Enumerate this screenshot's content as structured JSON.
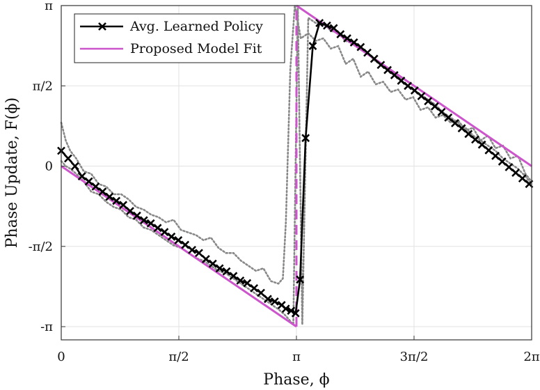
{
  "chart_data": {
    "type": "line",
    "title": "",
    "xlabel": "Phase, ϕ",
    "ylabel": "Phase Update, F(ϕ)",
    "xlim": [
      0,
      6.2832
    ],
    "ylim": [
      -3.4,
      3.1416
    ],
    "grid": true,
    "legend_position": "top-left",
    "x_ticks": [
      {
        "value": 0,
        "label": "0"
      },
      {
        "value": 1.5708,
        "label": "π/2"
      },
      {
        "value": 3.1416,
        "label": "π"
      },
      {
        "value": 4.7124,
        "label": "3π/2"
      },
      {
        "value": 6.2832,
        "label": "2π"
      }
    ],
    "y_ticks": [
      {
        "value": -3.1416,
        "label": "-π"
      },
      {
        "value": -1.5708,
        "label": "-π/2"
      },
      {
        "value": 0,
        "label": "0"
      },
      {
        "value": 1.5708,
        "label": "π/2"
      },
      {
        "value": 3.1416,
        "label": "π"
      }
    ],
    "series": [
      {
        "name": "Avg. Learned Policy",
        "color": "#000000",
        "marker": "x",
        "x": [
          0.0,
          0.092,
          0.184,
          0.276,
          0.368,
          0.46,
          0.552,
          0.644,
          0.736,
          0.828,
          0.92,
          1.012,
          1.104,
          1.196,
          1.288,
          1.38,
          1.472,
          1.564,
          1.656,
          1.748,
          1.84,
          1.932,
          2.024,
          2.116,
          2.208,
          2.3,
          2.392,
          2.484,
          2.576,
          2.668,
          2.76,
          2.852,
          2.944,
          3.0,
          3.07,
          3.13,
          3.19,
          3.264,
          3.36,
          3.45,
          3.55,
          3.64,
          3.73,
          3.82,
          3.91,
          4.0,
          4.09,
          4.18,
          4.27,
          4.36,
          4.45,
          4.54,
          4.63,
          4.72,
          4.81,
          4.9,
          4.99,
          5.08,
          5.17,
          5.26,
          5.35,
          5.44,
          5.53,
          5.62,
          5.71,
          5.8,
          5.89,
          5.98,
          6.07,
          6.16,
          6.25
        ],
        "y": [
          0.3,
          0.15,
          0.0,
          -0.2,
          -0.3,
          -0.4,
          -0.5,
          -0.6,
          -0.68,
          -0.76,
          -0.88,
          -0.97,
          -1.06,
          -1.12,
          -1.21,
          -1.29,
          -1.38,
          -1.45,
          -1.54,
          -1.64,
          -1.7,
          -1.82,
          -1.91,
          -2.0,
          -2.06,
          -2.15,
          -2.24,
          -2.29,
          -2.39,
          -2.48,
          -2.6,
          -2.65,
          -2.72,
          -2.79,
          -2.83,
          -2.88,
          -2.22,
          0.55,
          2.35,
          2.8,
          2.75,
          2.7,
          2.58,
          2.5,
          2.42,
          2.33,
          2.22,
          2.1,
          1.98,
          1.88,
          1.78,
          1.67,
          1.57,
          1.48,
          1.37,
          1.27,
          1.17,
          1.06,
          0.95,
          0.84,
          0.74,
          0.63,
          0.52,
          0.42,
          0.31,
          0.2,
          0.09,
          -0.02,
          -0.13,
          -0.24,
          -0.35
        ]
      },
      {
        "name": "Proposed Model Fit",
        "color": "#cc55cc",
        "marker": "none",
        "x": [
          0.0,
          3.1416,
          3.1416,
          6.2832
        ],
        "y": [
          0.0,
          -3.1416,
          3.1416,
          0.0
        ]
      },
      {
        "name": "",
        "color": "#888888",
        "style": "dotted",
        "x": [
          0.0,
          0.06,
          0.12,
          0.2,
          0.3,
          0.4,
          0.5,
          0.6,
          0.7,
          0.8,
          0.9,
          1.0,
          1.1,
          1.2,
          1.3,
          1.4,
          1.5,
          1.6,
          1.7,
          1.8,
          1.9,
          2.0,
          2.1,
          2.2,
          2.3,
          2.4,
          2.5,
          2.6,
          2.7,
          2.8,
          2.9,
          2.96,
          3.0,
          3.06,
          3.12,
          3.2,
          3.3,
          3.4,
          3.5,
          3.6,
          3.7,
          3.8,
          3.9,
          4.0,
          4.1,
          4.2,
          4.3,
          4.4,
          4.5,
          4.6,
          4.7,
          4.8,
          4.9,
          5.0,
          5.1,
          5.2,
          5.3,
          5.4,
          5.5,
          5.6,
          5.7,
          5.8,
          5.9,
          6.0,
          6.1,
          6.2,
          6.28
        ],
        "y": [
          0.85,
          0.5,
          0.3,
          0.15,
          -0.1,
          -0.15,
          -0.35,
          -0.4,
          -0.55,
          -0.55,
          -0.65,
          -0.8,
          -0.85,
          -0.95,
          -1.0,
          -1.1,
          -1.05,
          -1.25,
          -1.3,
          -1.35,
          -1.45,
          -1.4,
          -1.6,
          -1.7,
          -1.7,
          -1.85,
          -1.95,
          -2.05,
          -2.0,
          -2.25,
          -2.3,
          -2.2,
          -1.1,
          1.9,
          3.15,
          2.5,
          2.6,
          2.45,
          2.5,
          2.3,
          2.35,
          2.0,
          2.1,
          1.75,
          1.85,
          1.6,
          1.65,
          1.45,
          1.5,
          1.3,
          1.35,
          1.1,
          1.15,
          0.95,
          1.0,
          0.85,
          0.9,
          0.7,
          0.75,
          0.5,
          0.6,
          0.35,
          0.4,
          0.15,
          0.2,
          -0.15,
          -0.3
        ]
      },
      {
        "name": "",
        "color": "#888888",
        "style": "dotted",
        "x": [
          0.0,
          0.06,
          0.12,
          0.2,
          0.3,
          0.4,
          0.5,
          0.6,
          0.7,
          0.8,
          0.9,
          1.0,
          1.1,
          1.2,
          1.3,
          1.4,
          1.5,
          1.6,
          1.7,
          1.8,
          1.9,
          2.0,
          2.1,
          2.2,
          2.3,
          2.4,
          2.5,
          2.6,
          2.7,
          2.8,
          2.9,
          2.98,
          3.04,
          3.1,
          3.16,
          3.22,
          3.3,
          3.4,
          3.5,
          3.6,
          3.7,
          3.8,
          3.9,
          4.0,
          4.1,
          4.2,
          4.3,
          4.4,
          4.5,
          4.6,
          4.7,
          4.8,
          4.9,
          5.0,
          5.1,
          5.2,
          5.3,
          5.4,
          5.5,
          5.6,
          5.7,
          5.8,
          5.9,
          6.0,
          6.1,
          6.2,
          6.28
        ],
        "y": [
          0.1,
          0.0,
          -0.05,
          -0.15,
          -0.3,
          -0.5,
          -0.55,
          -0.7,
          -0.8,
          -0.85,
          -1.0,
          -1.05,
          -1.2,
          -1.25,
          -1.35,
          -1.45,
          -1.55,
          -1.6,
          -1.7,
          -1.8,
          -1.85,
          -1.95,
          -2.05,
          -2.1,
          -2.2,
          -2.3,
          -2.4,
          -2.5,
          -2.6,
          -2.7,
          -2.8,
          -2.9,
          -3.0,
          -3.1,
          3.1,
          -3.1,
          2.9,
          2.8,
          2.8,
          2.65,
          2.6,
          2.45,
          2.4,
          2.3,
          2.2,
          2.05,
          1.95,
          1.85,
          1.75,
          1.6,
          1.5,
          1.4,
          1.3,
          1.2,
          1.05,
          0.95,
          0.85,
          0.75,
          0.6,
          0.5,
          0.4,
          0.3,
          0.15,
          0.05,
          -0.05,
          -0.2,
          -0.35
        ]
      }
    ],
    "legend": [
      {
        "label": "Avg. Learned Policy",
        "color": "#000000",
        "marker": "x"
      },
      {
        "label": "Proposed Model Fit",
        "color": "#cc55cc",
        "marker": "none"
      }
    ]
  }
}
